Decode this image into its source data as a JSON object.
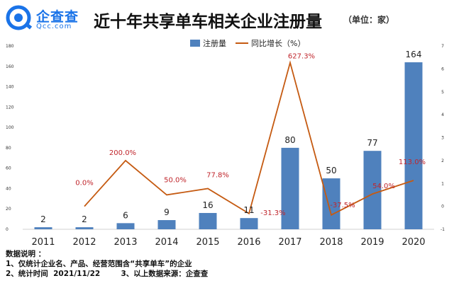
{
  "brand": {
    "name": "企查查",
    "domain": "Qcc.com",
    "color": "#1a73e8"
  },
  "title": "近十年共享单车相关企业注册量",
  "unit_note": "（单位：家）",
  "notes": {
    "heading": "数据说明 ：",
    "line1": "1、仅统计企业名、产品、经营范围含“共享单车”的企业",
    "line2": "2、统计时间  2021/11/22        3、以上数据来源：企查查"
  },
  "colors": {
    "bar": "#4f81bd",
    "line": "#c55a11",
    "label_red": "#c0262c"
  },
  "chart_data": {
    "type": "bar",
    "categories": [
      "2011",
      "2012",
      "2013",
      "2014",
      "2015",
      "2016",
      "2017",
      "2018",
      "2019",
      "2020"
    ],
    "series": [
      {
        "name": "注册量",
        "type": "bar",
        "axis": "left",
        "values": [
          2,
          2,
          6,
          9,
          16,
          11,
          80,
          50,
          77,
          164
        ]
      },
      {
        "name": "同比增长（%）",
        "type": "line",
        "axis": "right",
        "values": [
          null,
          0.0,
          2.0,
          0.5,
          0.778,
          -0.313,
          6.273,
          -0.375,
          0.54,
          1.13
        ],
        "labels": [
          "",
          "0.0%",
          "200.0%",
          "50.0%",
          "77.8%",
          "-31.3%",
          "627.3%",
          "-37.5%",
          "54.0%",
          "113.0%"
        ]
      }
    ],
    "left_axis": {
      "ylim": [
        0,
        180
      ],
      "ticks": [
        "0",
        "20",
        "40",
        "60",
        "80",
        "100",
        "120",
        "140",
        "160",
        "180"
      ]
    },
    "right_axis": {
      "ylim": [
        -1,
        7
      ],
      "ticks": [
        "-1",
        "0",
        "1",
        "2",
        "3",
        "4",
        "5",
        "6",
        "7"
      ]
    },
    "bar_labels": [
      "2",
      "2",
      "6",
      "9",
      "16",
      "11",
      "80",
      "50",
      "77",
      "164"
    ],
    "legend": {
      "position": "top-right",
      "items": [
        "注册量",
        "同比增长（%）"
      ]
    },
    "grid": false
  }
}
